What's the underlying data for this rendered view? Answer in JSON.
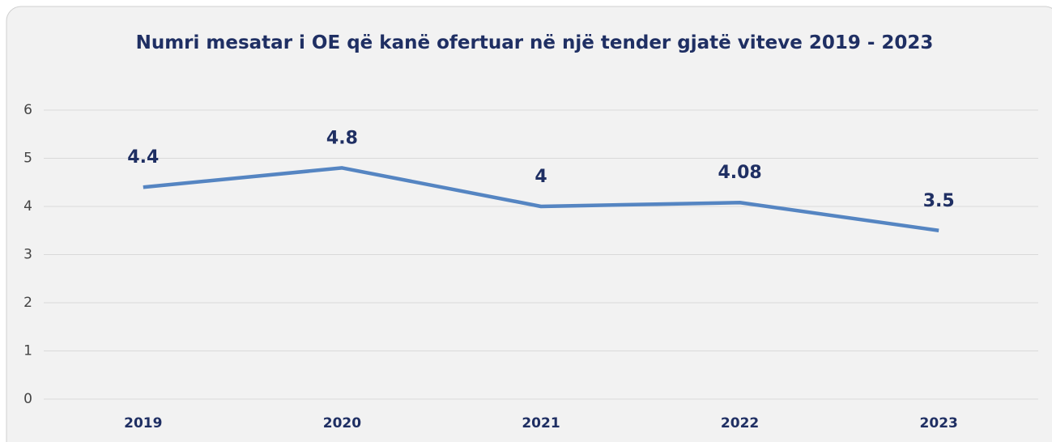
{
  "chart_data": {
    "type": "line",
    "title": "Numri mesatar i OE që kanë ofertuar në një tender gjatë viteve 2019 - 2023",
    "categories": [
      "2019",
      "2020",
      "2021",
      "2022",
      "2023"
    ],
    "values": [
      4.4,
      4.8,
      4,
      4.08,
      3.5
    ],
    "color": "#5585c2",
    "ylim": [
      0,
      6
    ],
    "yticks": [
      0,
      1,
      2,
      3,
      4,
      5,
      6
    ],
    "grid": true
  }
}
